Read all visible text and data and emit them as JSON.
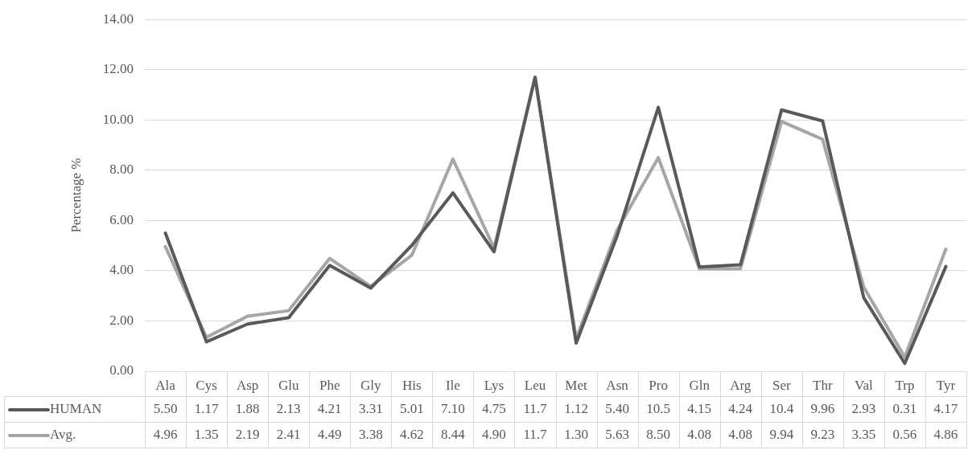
{
  "chart_data": {
    "type": "line",
    "ylabel": "Percentage %",
    "categories": [
      "Ala",
      "Cys",
      "Asp",
      "Glu",
      "Phe",
      "Gly",
      "His",
      "Ile",
      "Lys",
      "Leu",
      "Met",
      "Asn",
      "Pro",
      "Gln",
      "Arg",
      "Ser",
      "Thr",
      "Val",
      "Trp",
      "Tyr"
    ],
    "series": [
      {
        "name": "HUMAN",
        "color": "#595959",
        "values": [
          5.5,
          1.17,
          1.88,
          2.13,
          4.21,
          3.31,
          5.01,
          7.1,
          4.75,
          11.7,
          1.12,
          5.4,
          10.5,
          4.15,
          4.24,
          10.4,
          9.96,
          2.93,
          0.31,
          4.17
        ],
        "value_labels": [
          "5.50",
          "1.17",
          "1.88",
          "2.13",
          "4.21",
          "3.31",
          "5.01",
          "7.10",
          "4.75",
          "11.7",
          "1.12",
          "5.40",
          "10.5",
          "4.15",
          "4.24",
          "10.4",
          "9.96",
          "2.93",
          "0.31",
          "4.17"
        ]
      },
      {
        "name": "Avg.",
        "color": "#a6a6a6",
        "values": [
          4.96,
          1.35,
          2.19,
          2.41,
          4.49,
          3.38,
          4.62,
          8.44,
          4.9,
          11.7,
          1.3,
          5.63,
          8.5,
          4.08,
          4.08,
          9.94,
          9.23,
          3.35,
          0.56,
          4.86
        ],
        "value_labels": [
          "4.96",
          "1.35",
          "2.19",
          "2.41",
          "4.49",
          "3.38",
          "4.62",
          "8.44",
          "4.90",
          "11.7",
          "1.30",
          "5.63",
          "8.50",
          "4.08",
          "4.08",
          "9.94",
          "9.23",
          "3.35",
          "0.56",
          "4.86"
        ]
      }
    ],
    "ylim": [
      0,
      14
    ],
    "yticks": [
      {
        "value": 0,
        "label": "0.00"
      },
      {
        "value": 2,
        "label": "2.00"
      },
      {
        "value": 4,
        "label": "4.00"
      },
      {
        "value": 6,
        "label": "6.00"
      },
      {
        "value": 8,
        "label": "8.00"
      },
      {
        "value": 10,
        "label": "10.00"
      },
      {
        "value": 12,
        "label": "12.00"
      },
      {
        "value": 14,
        "label": "14.00"
      }
    ],
    "grid": "y",
    "legend": "bottom",
    "marker": "none",
    "line_style": "solid"
  }
}
